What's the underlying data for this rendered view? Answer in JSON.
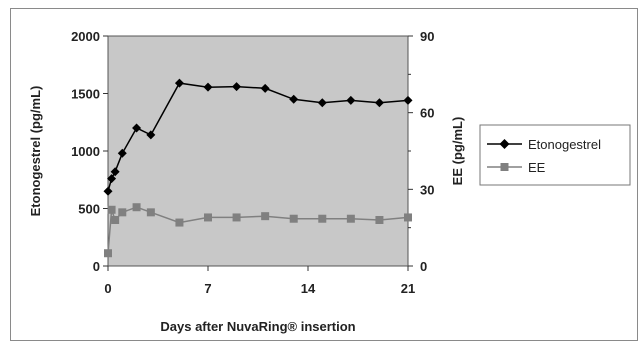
{
  "chart_data": {
    "type": "line",
    "xlabel": "Days after NuvaRing® insertion",
    "ylabel_left": "Etonogestrel (pg/mL)",
    "ylabel_right": "EE (pg/mL)",
    "x_ticks": [
      0,
      7,
      14,
      21
    ],
    "xlim": [
      0,
      21
    ],
    "y_left_ticks": [
      0,
      500,
      1000,
      1500,
      2000
    ],
    "ylim_left": [
      0,
      2000
    ],
    "y_right_ticks": [
      0,
      30,
      60,
      90
    ],
    "ylim_right": [
      0,
      90
    ],
    "background": "#c8c8c8",
    "grid": false,
    "legend_position": "right",
    "series": [
      {
        "name": "Etonogestrel",
        "axis": "left",
        "marker": "diamond",
        "color": "#000000",
        "x": [
          0,
          0.25,
          0.5,
          1,
          2,
          3,
          5,
          7,
          9,
          11,
          13,
          15,
          17,
          19,
          21
        ],
        "y": [
          650,
          760,
          820,
          980,
          1200,
          1140,
          1590,
          1555,
          1560,
          1545,
          1450,
          1420,
          1440,
          1420,
          1440
        ]
      },
      {
        "name": "EE",
        "axis": "right",
        "marker": "square",
        "color": "#808080",
        "x": [
          0,
          0.25,
          0.5,
          1,
          2,
          3,
          5,
          7,
          9,
          11,
          13,
          15,
          17,
          19,
          21
        ],
        "y": [
          5,
          22,
          18,
          21,
          23,
          21,
          17,
          19,
          19,
          19.5,
          18.5,
          18.5,
          18.5,
          18,
          19
        ]
      }
    ]
  }
}
